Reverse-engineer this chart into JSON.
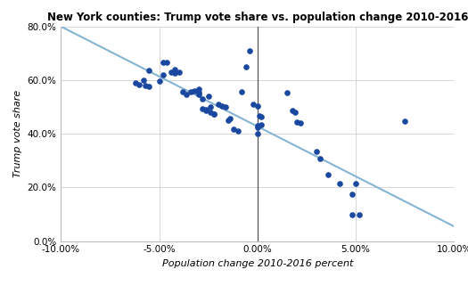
{
  "title": "New York counties: Trump vote share vs. population change 2010-2016",
  "xlabel": "Population change 2010-2016 percent",
  "ylabel": "Trump vote share",
  "xlim": [
    -0.1,
    0.1
  ],
  "ylim": [
    0.0,
    0.8
  ],
  "xticks": [
    -0.1,
    -0.05,
    0.0,
    0.05,
    0.1
  ],
  "yticks": [
    0.0,
    0.2,
    0.4,
    0.6,
    0.8
  ],
  "scatter_color": "#1a47a0",
  "line_color": "#85b4d4",
  "background_color": "#ffffff",
  "points": [
    [
      -0.055,
      0.635
    ],
    [
      -0.058,
      0.6
    ],
    [
      -0.062,
      0.59
    ],
    [
      -0.06,
      0.583
    ],
    [
      -0.057,
      0.58
    ],
    [
      -0.055,
      0.578
    ],
    [
      -0.05,
      0.598
    ],
    [
      -0.048,
      0.62
    ],
    [
      -0.048,
      0.667
    ],
    [
      -0.046,
      0.665
    ],
    [
      -0.044,
      0.63
    ],
    [
      -0.042,
      0.628
    ],
    [
      -0.042,
      0.625
    ],
    [
      -0.042,
      0.64
    ],
    [
      -0.04,
      0.63
    ],
    [
      -0.038,
      0.556
    ],
    [
      -0.036,
      0.548
    ],
    [
      -0.034,
      0.558
    ],
    [
      -0.032,
      0.56
    ],
    [
      -0.03,
      0.554
    ],
    [
      -0.03,
      0.565
    ],
    [
      -0.03,
      0.545
    ],
    [
      -0.028,
      0.53
    ],
    [
      -0.028,
      0.495
    ],
    [
      -0.026,
      0.49
    ],
    [
      -0.026,
      0.488
    ],
    [
      -0.025,
      0.54
    ],
    [
      -0.024,
      0.5
    ],
    [
      -0.024,
      0.48
    ],
    [
      -0.022,
      0.475
    ],
    [
      -0.022,
      0.472
    ],
    [
      -0.02,
      0.51
    ],
    [
      -0.018,
      0.505
    ],
    [
      -0.016,
      0.5
    ],
    [
      -0.015,
      0.45
    ],
    [
      -0.014,
      0.456
    ],
    [
      -0.012,
      0.418
    ],
    [
      -0.01,
      0.41
    ],
    [
      -0.008,
      0.555
    ],
    [
      -0.006,
      0.648
    ],
    [
      -0.004,
      0.71
    ],
    [
      -0.002,
      0.51
    ],
    [
      0.0,
      0.505
    ],
    [
      0.0,
      0.43
    ],
    [
      0.0,
      0.425
    ],
    [
      0.0,
      0.399
    ],
    [
      0.001,
      0.468
    ],
    [
      0.002,
      0.462
    ],
    [
      0.002,
      0.435
    ],
    [
      0.015,
      0.553
    ],
    [
      0.018,
      0.488
    ],
    [
      0.019,
      0.48
    ],
    [
      0.02,
      0.443
    ],
    [
      0.022,
      0.44
    ],
    [
      0.03,
      0.335
    ],
    [
      0.032,
      0.307
    ],
    [
      0.036,
      0.247
    ],
    [
      0.042,
      0.216
    ],
    [
      0.048,
      0.175
    ],
    [
      0.048,
      0.098
    ],
    [
      0.05,
      0.215
    ],
    [
      0.052,
      0.098
    ],
    [
      0.075,
      0.447
    ]
  ],
  "trend_x": [
    -0.1,
    0.1
  ],
  "trend_y": [
    0.8,
    0.055
  ]
}
